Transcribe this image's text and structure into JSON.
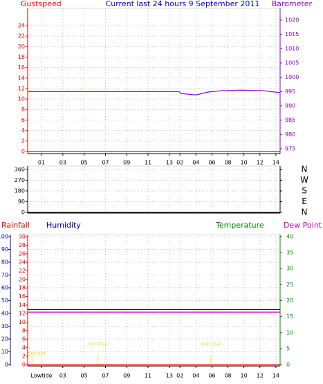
{
  "chart_data": [
    {
      "type": "line",
      "title": "Current last 24 hours 9 September 2011",
      "xlim": [
        -1.3,
        22.4
      ],
      "xticks": [
        {
          "value": 0,
          "label": "01"
        },
        {
          "value": 2,
          "label": "03"
        },
        {
          "value": 4,
          "label": "05"
        },
        {
          "value": 6,
          "label": "07"
        },
        {
          "value": 8,
          "label": "09"
        },
        {
          "value": 10,
          "label": "11"
        },
        {
          "value": 12,
          "label": "13"
        },
        {
          "value": 13,
          "label": "02"
        },
        {
          "value": 14.5,
          "label": "04"
        },
        {
          "value": 16,
          "label": "06"
        },
        {
          "value": 17.5,
          "label": "08"
        },
        {
          "value": 19,
          "label": "10"
        },
        {
          "value": 20.5,
          "label": "12"
        },
        {
          "value": 22,
          "label": "14"
        }
      ],
      "ylim": [
        -0.4,
        27.3
      ],
      "yticks": [
        0,
        2,
        4,
        6,
        8,
        10,
        12,
        14,
        16,
        18,
        20,
        22,
        24
      ],
      "ycolor": "#dd0000",
      "y2lim": [
        973.3,
        1024.1
      ],
      "y2ticks": [
        975,
        980,
        985,
        990,
        995,
        1000,
        1005,
        1010,
        1015,
        1020
      ],
      "y2color": "#8800cc",
      "grid": true,
      "series": [
        {
          "name": "Gustspeed",
          "color": "#ff0000",
          "axis": "y",
          "x": [
            -1.3,
            22.4
          ],
          "values": [
            0,
            0
          ]
        },
        {
          "name": "Barometer",
          "color": "#8800cc",
          "axis": "y2",
          "x": [
            -1.3,
            12.9,
            13.1,
            14.5,
            15.6,
            16.9,
            18.8,
            20.8,
            22.4
          ],
          "values": [
            995.0,
            995.0,
            994.3,
            993.8,
            994.8,
            995.3,
            995.5,
            995.3,
            994.6
          ]
        }
      ]
    },
    {
      "type": "line",
      "xlim": [
        -1.3,
        22.4
      ],
      "ylim": [
        -6,
        389
      ],
      "yticks": [
        0,
        90,
        180,
        270,
        360
      ],
      "ycolor": "#000000",
      "y2lim": [
        -6,
        389
      ],
      "y2ticks": [
        {
          "value": 0,
          "label": "N"
        },
        {
          "value": 90,
          "label": "E"
        },
        {
          "value": 180,
          "label": "S"
        },
        {
          "value": 270,
          "label": "W"
        },
        {
          "value": 360,
          "label": "N"
        }
      ],
      "y2color": "#000000",
      "grid": true,
      "series": [
        {
          "color": "#000000",
          "axis": "y",
          "x": [
            -1.3,
            22.4
          ],
          "values": [
            0,
            0
          ]
        }
      ]
    },
    {
      "type": "line",
      "xlim": [
        -1.3,
        22.4
      ],
      "xticks": [
        {
          "value": 0,
          "label": "Lowtide"
        },
        {
          "value": 2,
          "label": "03"
        },
        {
          "value": 4,
          "label": "05"
        },
        {
          "value": 6,
          "label": "07"
        },
        {
          "value": 8,
          "label": "09"
        },
        {
          "value": 10,
          "label": "11"
        },
        {
          "value": 12,
          "label": "13"
        },
        {
          "value": 13,
          "label": "02"
        },
        {
          "value": 14.5,
          "label": "04"
        },
        {
          "value": 16,
          "label": "06"
        },
        {
          "value": 17.5,
          "label": "08"
        },
        {
          "value": 19,
          "label": "10"
        },
        {
          "value": 20.5,
          "label": "12"
        },
        {
          "value": 22,
          "label": "14"
        }
      ],
      "ylim": [
        -1.1,
        101.6
      ],
      "yticks": [
        0,
        10,
        20,
        30,
        40,
        50,
        60,
        70,
        80,
        90,
        100
      ],
      "ycolor": "#000099",
      "y3lim": [
        -0.3,
        30.5
      ],
      "y3ticks": [
        0,
        2,
        4,
        6,
        8,
        10,
        12,
        14,
        16,
        18,
        20,
        22,
        24,
        26,
        28,
        30
      ],
      "y3color": "#dd0000",
      "y2lim": [
        -0.4,
        40.6
      ],
      "y2ticks": [
        0,
        5,
        10,
        15,
        20,
        25,
        30,
        35,
        40
      ],
      "y2color": "#008800",
      "temperature_label": "Temperature",
      "grid": true,
      "series": [
        {
          "name": "Rainfall",
          "color": "#ff0000",
          "axis": "y3",
          "x": [
            -1.3,
            22.4
          ],
          "values": [
            0,
            0
          ]
        },
        {
          "name": "Humidity",
          "color": "#000099",
          "axis": "y",
          "x": [
            -1.3,
            22.4
          ],
          "values": [
            43,
            43
          ]
        },
        {
          "name": "Dew Point",
          "color": "#cc00cc",
          "axis": "y2",
          "x": [
            -1.3,
            22.4
          ],
          "values": [
            16.4,
            16.4
          ]
        }
      ],
      "annotations": [
        {
          "label": "sunset",
          "x": -0.9
        },
        {
          "label": "sunrise",
          "x": 5.3
        },
        {
          "label": "sunrise",
          "x": 15.9
        }
      ]
    }
  ]
}
